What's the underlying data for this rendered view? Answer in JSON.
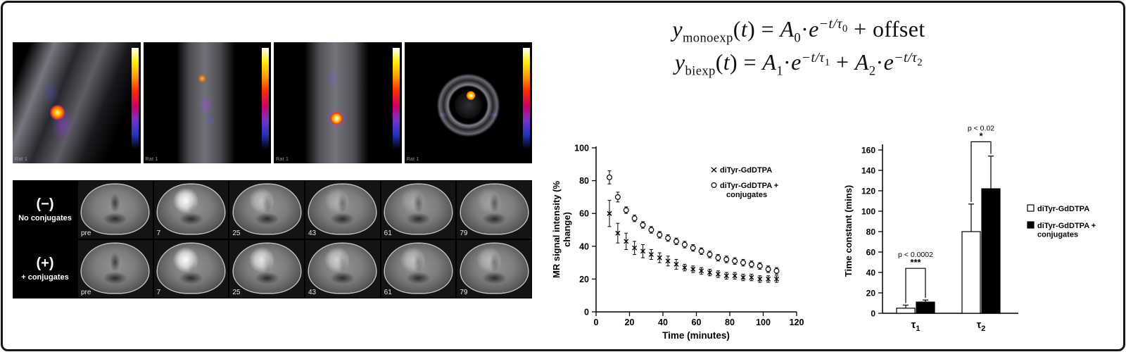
{
  "pet_strip": {
    "panels": [
      {
        "caption": "Rat 1"
      },
      {
        "caption": "Rat 1"
      },
      {
        "caption": "Rat 1"
      },
      {
        "caption": "Rat 1"
      }
    ],
    "colorbar_colors": [
      "#ffffff",
      "#ffee00",
      "#ff9900",
      "#ff2a00",
      "#cc0066",
      "#7733cc",
      "#2233bb",
      "#000000"
    ]
  },
  "mri_panel": {
    "rows": [
      {
        "sign": "(−)",
        "label": "No conjugates",
        "times": [
          "pre",
          "7",
          "25",
          "43",
          "61",
          "79"
        ]
      },
      {
        "sign": "(+)",
        "label": "+ conjugates",
        "times": [
          "pre",
          "7",
          "25",
          "43",
          "61",
          "79"
        ]
      }
    ]
  },
  "equations": [
    {
      "name": "monoexp",
      "segments": [
        {
          "t": "i",
          "v": "y"
        },
        {
          "t": "sub",
          "v": "monoexp"
        },
        {
          "t": "n",
          "v": "("
        },
        {
          "t": "i",
          "v": "t"
        },
        {
          "t": "n",
          "v": ") = "
        },
        {
          "t": "i",
          "v": "A"
        },
        {
          "t": "sub",
          "v": "0"
        },
        {
          "t": "n",
          "v": "·"
        },
        {
          "t": "i",
          "v": "e"
        },
        {
          "t": "sup",
          "v": "−t/τ",
          "s": "0"
        },
        {
          "t": "n",
          "v": " + offset"
        }
      ]
    },
    {
      "name": "biexp",
      "segments": [
        {
          "t": "i",
          "v": "y"
        },
        {
          "t": "sub",
          "v": "biexp"
        },
        {
          "t": "n",
          "v": "("
        },
        {
          "t": "i",
          "v": "t"
        },
        {
          "t": "n",
          "v": ") = "
        },
        {
          "t": "i",
          "v": "A"
        },
        {
          "t": "sub",
          "v": "1"
        },
        {
          "t": "n",
          "v": "·"
        },
        {
          "t": "i",
          "v": "e"
        },
        {
          "t": "sup",
          "v": "−t/τ",
          "s": "1"
        },
        {
          "t": "n",
          "v": " + "
        },
        {
          "t": "i",
          "v": "A"
        },
        {
          "t": "sub",
          "v": "2"
        },
        {
          "t": "n",
          "v": "·"
        },
        {
          "t": "i",
          "v": "e"
        },
        {
          "t": "sup",
          "v": "−t/τ",
          "s": "2"
        }
      ]
    }
  ],
  "chart_data": [
    {
      "type": "scatter",
      "xlabel": "Time (minutes)",
      "ylabel": "MR signal intensity (% change)",
      "ylabel_lines": [
        "MR signal intensity (%",
        "change)"
      ],
      "xlim": [
        0,
        120
      ],
      "ylim": [
        0,
        100
      ],
      "xticks": [
        0,
        20,
        40,
        60,
        80,
        100,
        120
      ],
      "yticks": [
        0,
        20,
        40,
        60,
        80,
        100
      ],
      "x": [
        8,
        13,
        18,
        23,
        28,
        33,
        38,
        43,
        48,
        53,
        58,
        63,
        68,
        73,
        78,
        83,
        88,
        93,
        98,
        103,
        108
      ],
      "series": [
        {
          "name": "diTyr-GdDTPA",
          "marker": "x",
          "color": "#000000",
          "values": [
            60,
            48,
            43,
            39,
            37,
            35,
            33,
            31,
            29,
            27,
            26,
            25,
            24,
            23,
            22,
            22,
            21,
            21,
            20,
            20,
            20
          ],
          "errors": [
            8,
            6,
            5,
            4,
            4,
            3,
            3,
            3,
            3,
            2,
            2,
            2,
            2,
            2,
            2,
            2,
            2,
            2,
            2,
            2,
            2
          ]
        },
        {
          "name": "diTyr-GdDTPA + conjugates",
          "marker": "o",
          "color": "#000000",
          "values": [
            82,
            70,
            62,
            57,
            53,
            50,
            47,
            45,
            43,
            41,
            39,
            37,
            35,
            33,
            32,
            31,
            30,
            29,
            28,
            26,
            25
          ],
          "errors": [
            4,
            3,
            2,
            2,
            2,
            2,
            2,
            2,
            2,
            2,
            2,
            2,
            2,
            2,
            2,
            2,
            2,
            2,
            2,
            2,
            2
          ]
        }
      ],
      "legend": [
        {
          "marker": "×",
          "lines": [
            "diTyr-GdDTPA"
          ]
        },
        {
          "marker": "○",
          "lines": [
            "diTyr-GdDTPA +",
            "conjugates"
          ]
        }
      ],
      "grid": false,
      "legend_position": "upper right inside"
    },
    {
      "type": "bar",
      "ylabel": "Time constant (mins)",
      "ylim": [
        0,
        160
      ],
      "yticks": [
        0,
        20,
        40,
        60,
        80,
        100,
        120,
        140,
        160
      ],
      "categories": [
        {
          "base": "τ",
          "sub": "1"
        },
        {
          "base": "τ",
          "sub": "2"
        }
      ],
      "series": [
        {
          "name": "diTyr-GdDTPA",
          "fill": "#ffffff",
          "values": [
            5,
            80
          ],
          "errors": [
            3,
            27
          ]
        },
        {
          "name": "diTyr-GdDTPA + conjugates",
          "fill": "#000000",
          "values": [
            11,
            122
          ],
          "errors": [
            2,
            32
          ]
        }
      ],
      "significance": [
        {
          "label": "p < 0.0002",
          "stars": "***",
          "group": 0,
          "y": 44
        },
        {
          "label": "p < 0.02",
          "stars": "*",
          "group": 1,
          "y": 168
        }
      ],
      "legend": [
        {
          "swatch": "open",
          "lines": [
            "diTyr-GdDTPA"
          ]
        },
        {
          "swatch": "filled",
          "lines": [
            "diTyr-GdDTPA +",
            "conjugates"
          ]
        }
      ],
      "grid": false,
      "legend_position": "right outside"
    }
  ]
}
